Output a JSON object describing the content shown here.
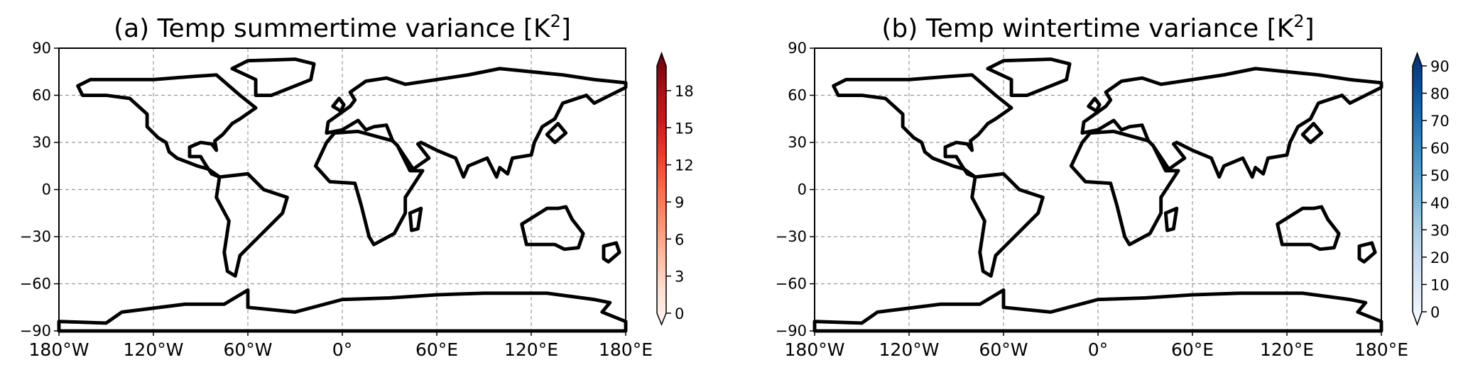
{
  "panels": [
    {
      "title_main": "(a) Temp summertime variance [K",
      "title_sup": "2",
      "title_end": "]",
      "variable": "summertime",
      "colormap": [
        "#fff5f0",
        "#fee0d2",
        "#fcbba1",
        "#fc9272",
        "#fb6a4a",
        "#ef3b2c",
        "#cb181d",
        "#a50f15",
        "#67000d"
      ],
      "colorbar": {
        "min": 0,
        "max": 20,
        "ticks": [
          "0",
          "3",
          "6",
          "9",
          "12",
          "15",
          "18"
        ],
        "tick_values": [
          0,
          3,
          6,
          9,
          12,
          15,
          18
        ],
        "extend": "both"
      },
      "yticks": [
        "90",
        "60",
        "30",
        "0",
        "−30",
        "−60",
        "−90"
      ],
      "xticks": [
        "180°W",
        "120°W",
        "60°W",
        "0°",
        "60°E",
        "120°E",
        "180°E"
      ]
    },
    {
      "title_main": "(b) Temp wintertime variance [K",
      "title_sup": "2",
      "title_end": "]",
      "variable": "wintertime",
      "colormap": [
        "#f7fbff",
        "#deebf7",
        "#c6dbef",
        "#9ecae1",
        "#6baed6",
        "#4292c6",
        "#2171b5",
        "#08519c",
        "#08306b"
      ],
      "colorbar": {
        "min": 0,
        "max": 90,
        "ticks": [
          "0",
          "10",
          "20",
          "30",
          "40",
          "50",
          "60",
          "70",
          "80",
          "90"
        ],
        "tick_values": [
          0,
          10,
          20,
          30,
          40,
          50,
          60,
          70,
          80,
          90
        ],
        "extend": "both"
      },
      "yticks": [
        "90",
        "60",
        "30",
        "0",
        "−30",
        "−60",
        "−90"
      ],
      "xticks": [
        "180°W",
        "120°W",
        "60°W",
        "0°",
        "60°E",
        "120°E",
        "180°E"
      ]
    }
  ]
}
